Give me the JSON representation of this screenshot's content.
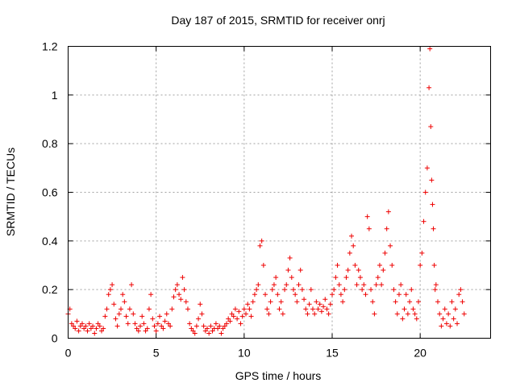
{
  "chart_data": {
    "type": "scatter",
    "title": "Day 187 of 2015, SRMTID for receiver onrj",
    "xlabel": "GPS time / hours",
    "ylabel": "SRMTID / TECUs",
    "xlim": [
      0,
      24
    ],
    "ylim": [
      0,
      1.2
    ],
    "xticks": [
      0,
      5,
      10,
      15,
      20
    ],
    "xtick_labels": [
      "0",
      "5",
      "10",
      "15",
      "20"
    ],
    "yticks": [
      0,
      0.2,
      0.4,
      0.6,
      0.8,
      1.0,
      1.2
    ],
    "ytick_labels": [
      "0",
      "0.2",
      "0.4",
      "0.6",
      "0.8",
      "1",
      "1.2"
    ],
    "grid": true,
    "marker": "+",
    "marker_color": "#ee0000",
    "series": [
      {
        "name": "SRMTID",
        "x": [
          0.0,
          0.1,
          0.2,
          0.3,
          0.4,
          0.5,
          0.6,
          0.7,
          0.8,
          0.9,
          1.0,
          1.1,
          1.2,
          1.3,
          1.4,
          1.5,
          1.6,
          1.7,
          1.8,
          1.9,
          2.0,
          2.1,
          2.2,
          2.3,
          2.4,
          2.5,
          2.6,
          2.7,
          2.8,
          2.9,
          3.0,
          3.1,
          3.2,
          3.3,
          3.4,
          3.5,
          3.6,
          3.7,
          3.8,
          3.9,
          4.0,
          4.1,
          4.2,
          4.3,
          4.4,
          4.5,
          4.6,
          4.7,
          4.8,
          4.9,
          5.0,
          5.1,
          5.2,
          5.3,
          5.4,
          5.5,
          5.6,
          5.7,
          5.8,
          5.9,
          6.0,
          6.1,
          6.2,
          6.3,
          6.4,
          6.5,
          6.6,
          6.7,
          6.8,
          6.9,
          7.0,
          7.1,
          7.2,
          7.3,
          7.4,
          7.5,
          7.6,
          7.7,
          7.8,
          7.9,
          8.0,
          8.1,
          8.2,
          8.3,
          8.4,
          8.5,
          8.6,
          8.7,
          8.8,
          8.9,
          9.0,
          9.1,
          9.2,
          9.3,
          9.4,
          9.5,
          9.6,
          9.7,
          9.8,
          9.9,
          10.0,
          10.1,
          10.2,
          10.3,
          10.4,
          10.5,
          10.6,
          10.7,
          10.8,
          10.9,
          11.0,
          11.1,
          11.2,
          11.3,
          11.4,
          11.5,
          11.6,
          11.7,
          11.8,
          11.9,
          12.0,
          12.1,
          12.2,
          12.3,
          12.4,
          12.5,
          12.6,
          12.7,
          12.8,
          12.9,
          13.0,
          13.1,
          13.2,
          13.3,
          13.4,
          13.5,
          13.6,
          13.7,
          13.8,
          13.9,
          14.0,
          14.1,
          14.2,
          14.3,
          14.4,
          14.5,
          14.6,
          14.7,
          14.8,
          14.9,
          15.0,
          15.1,
          15.2,
          15.3,
          15.4,
          15.5,
          15.6,
          15.7,
          15.8,
          15.9,
          16.0,
          16.1,
          16.2,
          16.3,
          16.4,
          16.5,
          16.6,
          16.7,
          16.8,
          16.9,
          17.0,
          17.1,
          17.2,
          17.3,
          17.4,
          17.5,
          17.6,
          17.7,
          17.8,
          17.9,
          18.0,
          18.1,
          18.2,
          18.3,
          18.4,
          18.5,
          18.6,
          18.7,
          18.8,
          18.9,
          19.0,
          19.1,
          19.2,
          19.3,
          19.4,
          19.5,
          19.6,
          19.7,
          19.8,
          19.9,
          20.0,
          20.1,
          20.2,
          20.3,
          20.4,
          20.5,
          20.55,
          20.6,
          20.65,
          20.7,
          20.75,
          20.8,
          20.85,
          20.9,
          21.0,
          21.1,
          21.2,
          21.3,
          21.4,
          21.5,
          21.6,
          21.7,
          21.8,
          21.9,
          22.0,
          22.1,
          22.2,
          22.3,
          22.4,
          22.5
        ],
        "y": [
          0.1,
          0.12,
          0.06,
          0.05,
          0.04,
          0.07,
          0.03,
          0.05,
          0.06,
          0.04,
          0.05,
          0.03,
          0.06,
          0.04,
          0.05,
          0.02,
          0.04,
          0.06,
          0.05,
          0.03,
          0.04,
          0.09,
          0.12,
          0.18,
          0.2,
          0.22,
          0.14,
          0.08,
          0.05,
          0.1,
          0.12,
          0.18,
          0.15,
          0.09,
          0.06,
          0.12,
          0.22,
          0.1,
          0.06,
          0.04,
          0.03,
          0.05,
          0.09,
          0.06,
          0.03,
          0.04,
          0.12,
          0.18,
          0.08,
          0.05,
          0.03,
          0.06,
          0.09,
          0.05,
          0.04,
          0.07,
          0.1,
          0.06,
          0.05,
          0.12,
          0.17,
          0.2,
          0.22,
          0.18,
          0.16,
          0.25,
          0.2,
          0.15,
          0.12,
          0.06,
          0.04,
          0.03,
          0.02,
          0.05,
          0.08,
          0.14,
          0.1,
          0.05,
          0.03,
          0.04,
          0.02,
          0.05,
          0.03,
          0.04,
          0.06,
          0.04,
          0.05,
          0.02,
          0.04,
          0.05,
          0.06,
          0.08,
          0.07,
          0.1,
          0.09,
          0.12,
          0.08,
          0.11,
          0.06,
          0.09,
          0.12,
          0.1,
          0.14,
          0.12,
          0.09,
          0.15,
          0.18,
          0.2,
          0.22,
          0.38,
          0.4,
          0.3,
          0.18,
          0.12,
          0.1,
          0.15,
          0.2,
          0.22,
          0.25,
          0.18,
          0.12,
          0.15,
          0.1,
          0.2,
          0.22,
          0.28,
          0.33,
          0.25,
          0.2,
          0.18,
          0.15,
          0.22,
          0.28,
          0.2,
          0.16,
          0.12,
          0.1,
          0.14,
          0.2,
          0.12,
          0.1,
          0.15,
          0.12,
          0.14,
          0.11,
          0.13,
          0.16,
          0.12,
          0.1,
          0.14,
          0.18,
          0.2,
          0.25,
          0.3,
          0.22,
          0.18,
          0.15,
          0.2,
          0.25,
          0.28,
          0.35,
          0.42,
          0.38,
          0.3,
          0.22,
          0.28,
          0.25,
          0.2,
          0.22,
          0.18,
          0.5,
          0.45,
          0.2,
          0.15,
          0.1,
          0.22,
          0.25,
          0.3,
          0.22,
          0.28,
          0.35,
          0.45,
          0.52,
          0.38,
          0.3,
          0.2,
          0.15,
          0.1,
          0.18,
          0.22,
          0.08,
          0.12,
          0.18,
          0.1,
          0.15,
          0.2,
          0.12,
          0.1,
          0.08,
          0.15,
          0.3,
          0.35,
          0.48,
          0.6,
          0.7,
          1.03,
          1.19,
          0.87,
          0.65,
          0.55,
          0.45,
          0.3,
          0.2,
          0.22,
          0.15,
          0.1,
          0.05,
          0.08,
          0.12,
          0.06,
          0.1,
          0.05,
          0.15,
          0.08,
          0.12,
          0.06,
          0.18,
          0.2,
          0.15,
          0.1
        ]
      }
    ]
  }
}
